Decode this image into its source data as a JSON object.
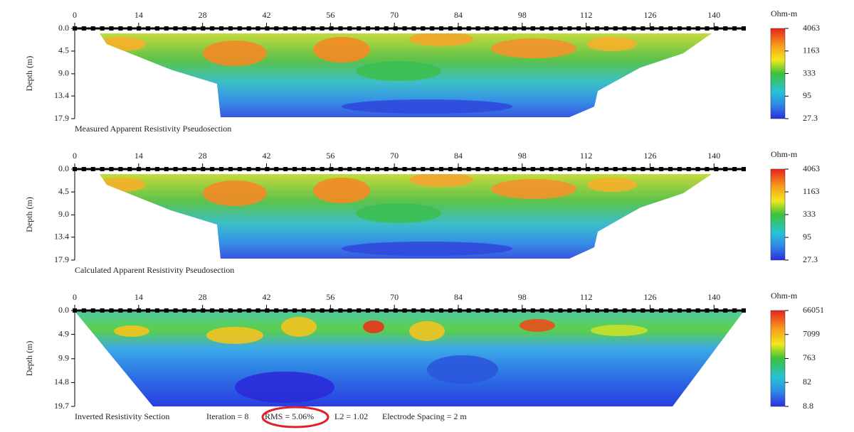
{
  "chart_data": [
    {
      "type": "contour",
      "ylabel": "Depth (m)",
      "xlim": [
        0,
        146.5
      ],
      "xticks": [
        0,
        14,
        28,
        42,
        56,
        70,
        84,
        98,
        112,
        126,
        140
      ],
      "ylim": [
        0,
        17.9
      ],
      "yticks": [
        {
          "value": 0,
          "label": "0.0"
        },
        4.5,
        {
          "value": 9,
          "label": "9.0"
        },
        13.4,
        17.9
      ],
      "colorbar": {
        "label": "Ohm-m",
        "log": true,
        "ticks": [
          27.3,
          95,
          333,
          1163,
          4063
        ]
      },
      "annotations": [
        "Measured Apparent Resistivity Pseudosection"
      ]
    },
    {
      "type": "contour",
      "ylabel": "Depth (m)",
      "xlim": [
        0,
        146.5
      ],
      "xticks": [
        0,
        14,
        28,
        42,
        56,
        70,
        84,
        98,
        112,
        126,
        140
      ],
      "ylim": [
        0,
        17.9
      ],
      "yticks": [
        {
          "value": 0,
          "label": "0.0"
        },
        4.5,
        {
          "value": 9,
          "label": "9.0"
        },
        13.4,
        17.9
      ],
      "colorbar": {
        "label": "Ohm-m",
        "log": true,
        "ticks": [
          27.3,
          95,
          333,
          1163,
          4063
        ]
      },
      "annotations": [
        "Calculated Apparent Resistivity Pseudosection"
      ]
    },
    {
      "type": "contour",
      "ylabel": "Depth (m)",
      "xlim": [
        0,
        146.5
      ],
      "xticks": [
        0,
        14,
        28,
        42,
        56,
        70,
        84,
        98,
        112,
        126,
        140
      ],
      "ylim": [
        0,
        19.7
      ],
      "yticks": [
        {
          "value": 0,
          "label": "0.0"
        },
        4.9,
        9.9,
        14.8,
        19.7
      ],
      "colorbar": {
        "label": "Ohm-m",
        "log": true,
        "ticks": [
          8.8,
          82,
          763,
          7099,
          66051
        ]
      },
      "annotations": [
        "Inverted Resistivity Section",
        "Iteration = 8",
        "RMS = 5.06%",
        "L2 = 1.02",
        "Electrode Spacing = 2 m"
      ]
    }
  ]
}
